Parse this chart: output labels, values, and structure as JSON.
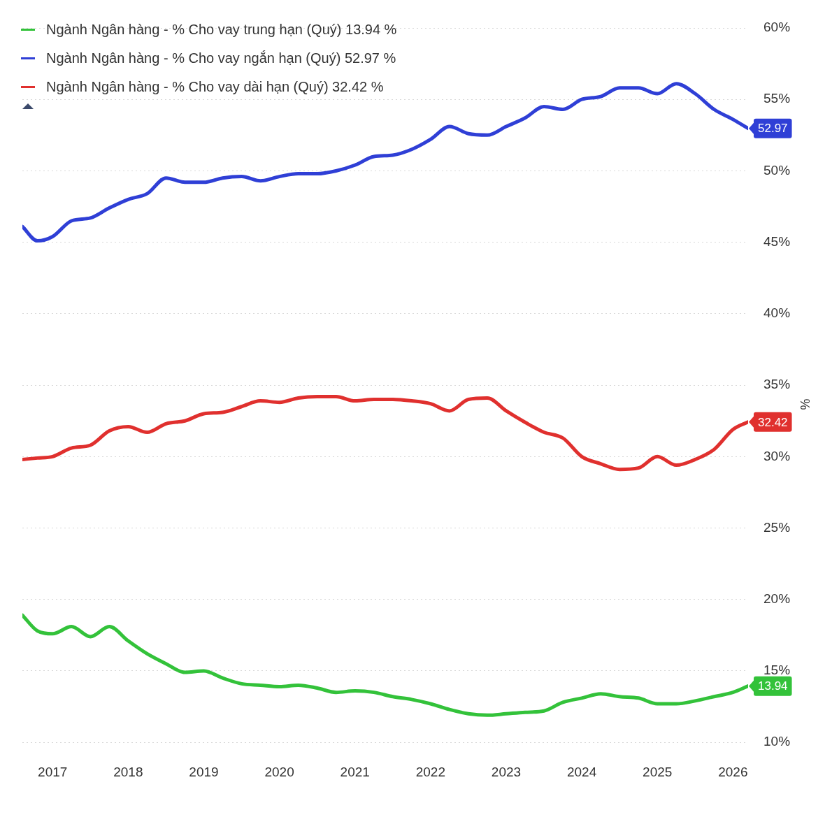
{
  "chart_data": {
    "type": "line",
    "ylabel": "%",
    "legend": "top left",
    "grid": "y",
    "marker": "none",
    "line_style": "solid",
    "x": [
      2016.6,
      2016.8,
      2017.0,
      2017.25,
      2017.5,
      2017.75,
      2018.0,
      2018.25,
      2018.5,
      2018.75,
      2019.0,
      2019.25,
      2019.5,
      2019.75,
      2020.0,
      2020.25,
      2020.5,
      2020.75,
      2021.0,
      2021.25,
      2021.5,
      2021.75,
      2022.0,
      2022.25,
      2022.5,
      2022.75,
      2023.0,
      2023.25,
      2023.5,
      2023.75,
      2024.0,
      2024.25,
      2024.5,
      2024.75,
      2025.0,
      2025.25,
      2025.5,
      2025.75,
      2026.0,
      2026.2
    ],
    "xlim": [
      2016.6,
      2026.2
    ],
    "xticks": [
      2017,
      2018,
      2019,
      2020,
      2021,
      2022,
      2023,
      2024,
      2025,
      2026
    ],
    "ylim": [
      10,
      60
    ],
    "yticks": [
      {
        "value": 10,
        "label": "10%"
      },
      {
        "value": 15,
        "label": "15%"
      },
      {
        "value": 20,
        "label": "20%"
      },
      {
        "value": 25,
        "label": "25%"
      },
      {
        "value": 30,
        "label": "30%"
      },
      {
        "value": 35,
        "label": "35%"
      },
      {
        "value": 40,
        "label": "40%"
      },
      {
        "value": 45,
        "label": "45%"
      },
      {
        "value": 50,
        "label": "50%"
      },
      {
        "value": 55,
        "label": "55%"
      },
      {
        "value": 60,
        "label": "60%"
      }
    ],
    "series": [
      {
        "name": "Ngành Ngân hàng - % Cho vay trung hạn (Quý)  13.94 %",
        "color": "#33c23a",
        "values": [
          18.9,
          17.8,
          17.6,
          18.1,
          17.4,
          18.1,
          17.1,
          16.2,
          15.5,
          14.9,
          15.0,
          14.5,
          14.1,
          14.0,
          13.9,
          14.0,
          13.8,
          13.5,
          13.6,
          13.5,
          13.2,
          13.0,
          12.7,
          12.3,
          12.0,
          11.9,
          12.0,
          12.1,
          12.2,
          12.8,
          13.1,
          13.4,
          13.2,
          13.1,
          12.7,
          12.7,
          12.9,
          13.2,
          13.5,
          13.94
        ],
        "value_labels": [
          null,
          null,
          null,
          null,
          null,
          null,
          null,
          null,
          null,
          null,
          null,
          null,
          null,
          null,
          null,
          null,
          null,
          null,
          null,
          null,
          null,
          null,
          null,
          null,
          null,
          null,
          null,
          null,
          null,
          null,
          null,
          null,
          null,
          null,
          null,
          null,
          null,
          null,
          null,
          "13.94"
        ]
      },
      {
        "name": "Ngành Ngân hàng - % Cho vay ngắn hạn (Quý)  52.97 %",
        "color": "#2f3fd6",
        "values": [
          46.1,
          45.1,
          45.4,
          46.5,
          46.7,
          47.4,
          48.0,
          48.4,
          49.5,
          49.2,
          49.2,
          49.5,
          49.6,
          49.3,
          49.6,
          49.8,
          49.8,
          50.0,
          50.4,
          51.0,
          51.1,
          51.5,
          52.2,
          53.1,
          52.6,
          52.5,
          53.1,
          53.7,
          54.5,
          54.3,
          55.0,
          55.2,
          55.8,
          55.8,
          55.4,
          56.1,
          55.4,
          54.3,
          53.6,
          52.97
        ],
        "value_labels": [
          null,
          null,
          null,
          null,
          null,
          null,
          null,
          null,
          null,
          null,
          null,
          null,
          null,
          null,
          null,
          null,
          null,
          null,
          null,
          null,
          null,
          null,
          null,
          null,
          null,
          null,
          null,
          null,
          null,
          null,
          null,
          null,
          null,
          null,
          null,
          null,
          null,
          null,
          null,
          "52.97"
        ]
      },
      {
        "name": "Ngành Ngân hàng - % Cho vay dài hạn (Quý)  32.42 %",
        "color": "#e0302e",
        "values": [
          29.8,
          29.9,
          30.0,
          30.6,
          30.8,
          31.8,
          32.1,
          31.7,
          32.3,
          32.5,
          33.0,
          33.1,
          33.5,
          33.9,
          33.8,
          34.1,
          34.2,
          34.2,
          33.9,
          34.0,
          34.0,
          33.9,
          33.7,
          33.2,
          34.0,
          34.1,
          33.2,
          32.4,
          31.7,
          31.3,
          30.0,
          29.5,
          29.1,
          29.2,
          30.0,
          29.4,
          29.8,
          30.5,
          31.9,
          32.42
        ],
        "value_labels": [
          null,
          null,
          null,
          null,
          null,
          null,
          null,
          null,
          null,
          null,
          null,
          null,
          null,
          null,
          null,
          null,
          null,
          null,
          null,
          null,
          null,
          null,
          null,
          null,
          null,
          null,
          null,
          null,
          null,
          null,
          null,
          null,
          null,
          null,
          null,
          null,
          null,
          null,
          null,
          "32.42"
        ]
      }
    ]
  }
}
